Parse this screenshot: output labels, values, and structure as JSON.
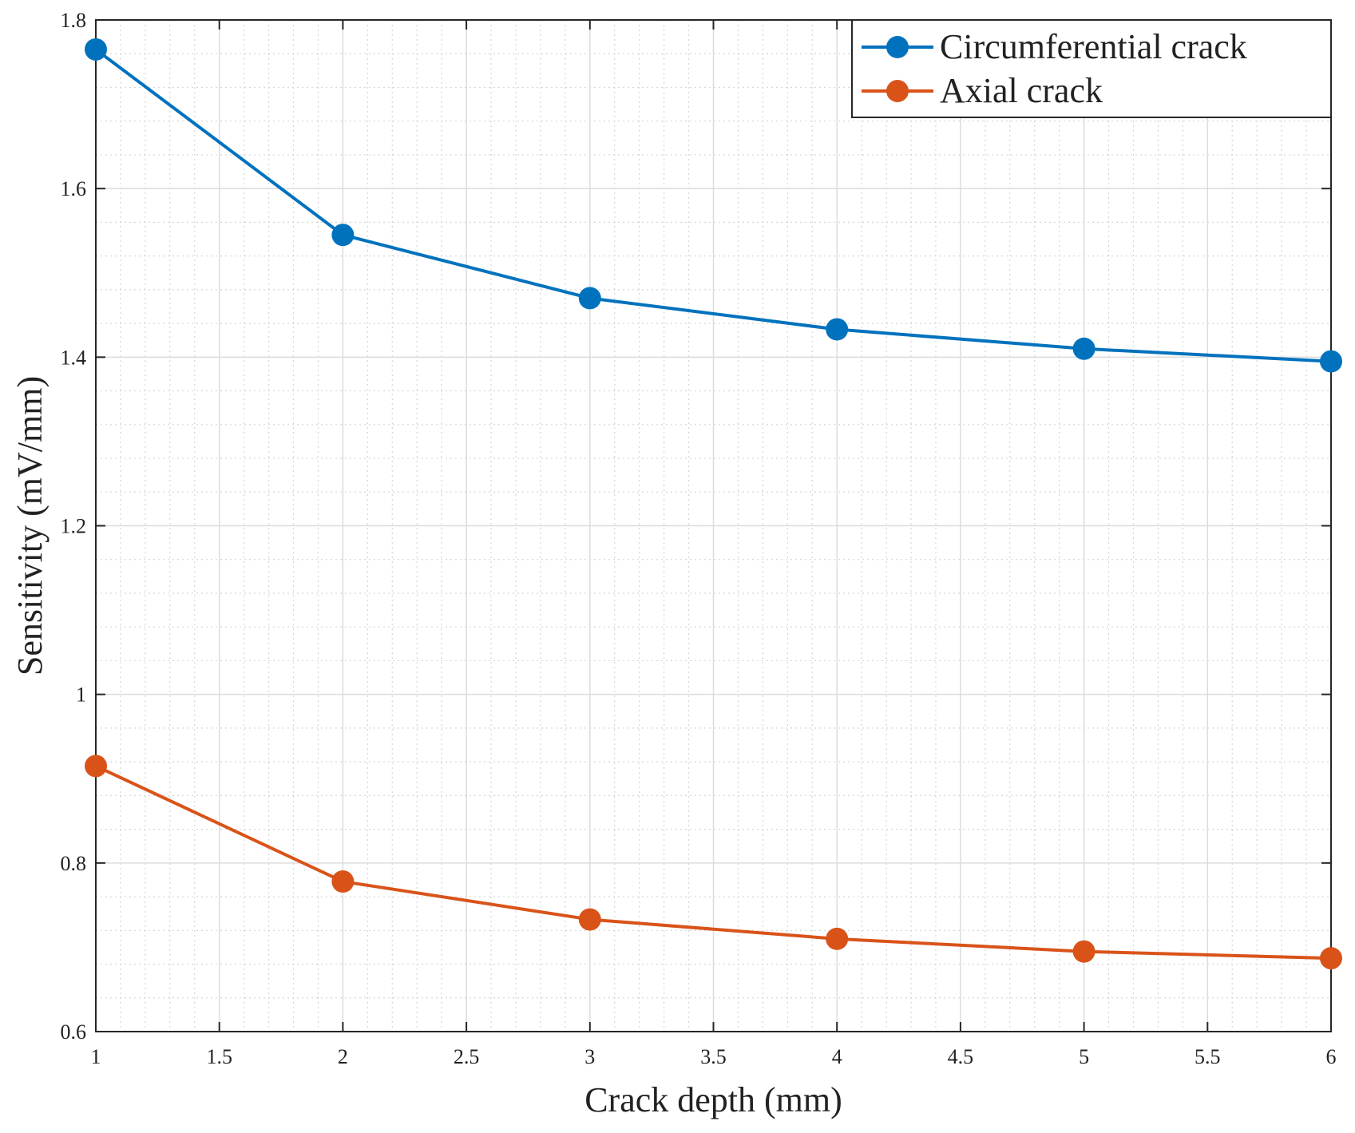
{
  "chart_data": {
    "type": "line",
    "title": "",
    "xlabel": "Crack depth (mm)",
    "ylabel": "Sensitivity (mV/mm)",
    "xlim": [
      1,
      6
    ],
    "ylim": [
      0.6,
      1.8
    ],
    "grid": true,
    "minor_grid": true,
    "x_ticks": [
      1,
      1.5,
      2,
      2.5,
      3,
      3.5,
      4,
      4.5,
      5,
      5.5,
      6
    ],
    "x_tick_labels": [
      "1",
      "1.5",
      "2",
      "2.5",
      "3",
      "3.5",
      "4",
      "4.5",
      "5",
      "5.5",
      "6"
    ],
    "y_ticks": [
      0.6,
      0.8,
      1.0,
      1.2,
      1.4,
      1.6,
      1.8
    ],
    "y_tick_labels": [
      "0.6",
      "0.8",
      "1",
      "1.2",
      "1.4",
      "1.6",
      "1.8"
    ],
    "legend_position": "top-right",
    "series": [
      {
        "name": "Circumferential crack",
        "color": "#0072BD",
        "x": [
          1,
          2,
          3,
          4,
          5,
          6
        ],
        "values": [
          1.765,
          1.545,
          1.47,
          1.433,
          1.41,
          1.395
        ]
      },
      {
        "name": "Axial crack",
        "color": "#D95319",
        "x": [
          1,
          2,
          3,
          4,
          5,
          6
        ],
        "values": [
          0.915,
          0.778,
          0.733,
          0.71,
          0.695,
          0.687
        ]
      }
    ]
  }
}
